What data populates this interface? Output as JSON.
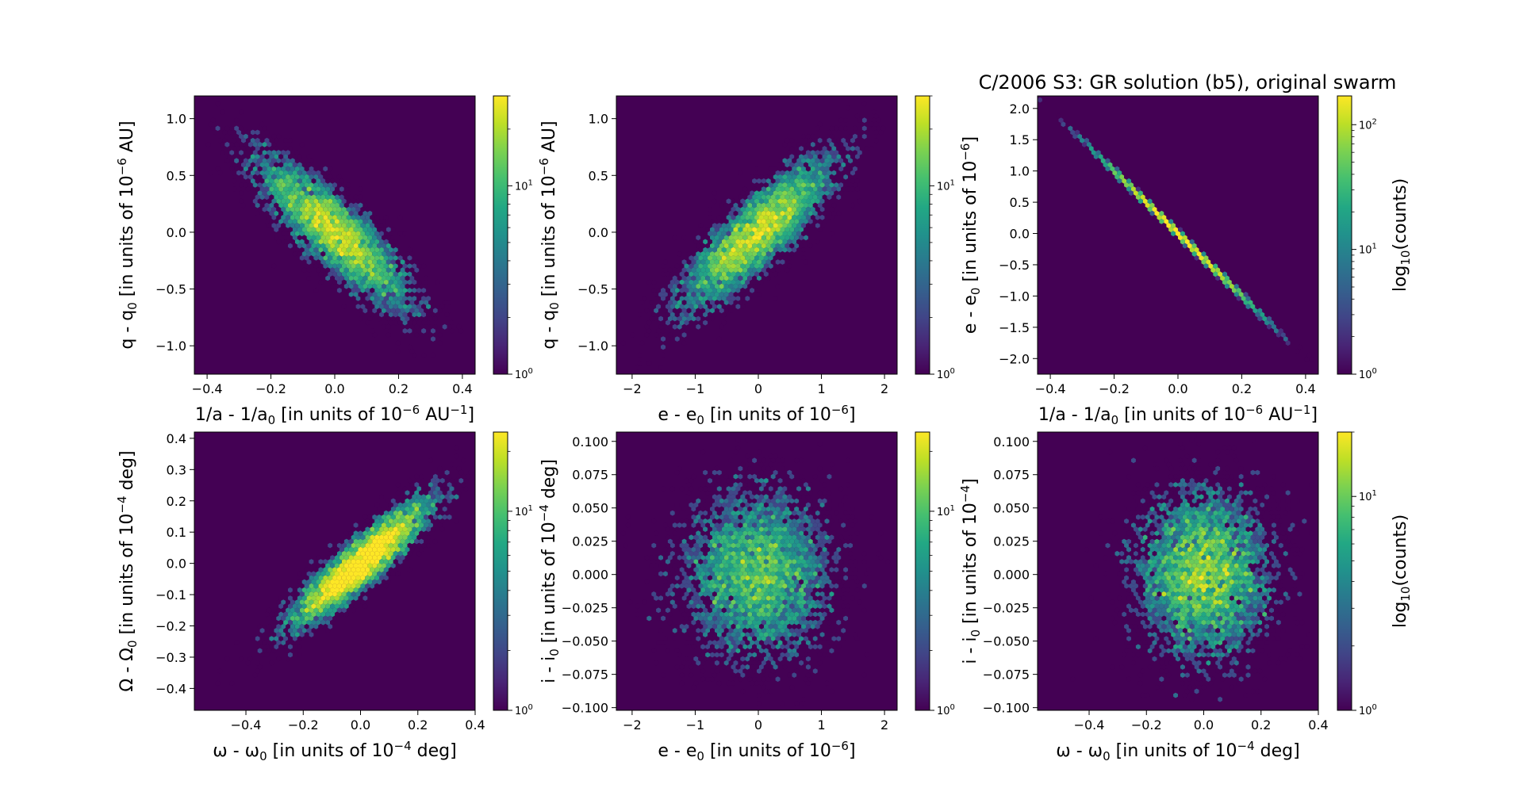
{
  "figure": {
    "title": "C/2006 S3: GR solution (b5), original swarm"
  },
  "colors": {
    "background": "#440154",
    "viridis": [
      "#440154",
      "#482475",
      "#414487",
      "#355f8d",
      "#2a788e",
      "#21918c",
      "#22a884",
      "#44bf70",
      "#7ad151",
      "#bddf26",
      "#fde725"
    ]
  },
  "chart_data": [
    {
      "type": "heatmap",
      "subtype": "hexbin-log",
      "xlabel": "1/a - 1/a0 [in units of 10^-6 AU^-1]",
      "ylabel": "q - q0 [in units of 10^-6 AU]",
      "xlim": [
        -0.44,
        0.44
      ],
      "ylim": [
        -1.25,
        1.2
      ],
      "xticks": [
        -0.4,
        -0.2,
        0.0,
        0.2,
        0.4
      ],
      "xtick_labels": [
        "−0.4",
        "−0.2",
        "0.0",
        "0.2",
        "0.4"
      ],
      "yticks": [
        -1.0,
        -0.5,
        0.0,
        0.5,
        1.0
      ],
      "ytick_labels": [
        "−1.0",
        "−0.5",
        "0.0",
        "0.5",
        "1.0"
      ],
      "distribution": {
        "sx": 0.12,
        "sy": 0.33,
        "rho": -0.85,
        "n": 6000
      },
      "colorbar": {
        "max": 30,
        "ticks": [
          1,
          10
        ],
        "label": ""
      }
    },
    {
      "type": "heatmap",
      "subtype": "hexbin-log",
      "xlabel": "e - e0 [in units of 10^-6]",
      "ylabel": "q - q0 [in units of 10^-6 AU]",
      "xlim": [
        -2.25,
        2.2
      ],
      "ylim": [
        -1.25,
        1.2
      ],
      "xticks": [
        -2,
        -1,
        0,
        1,
        2
      ],
      "xtick_labels": [
        "−2",
        "−1",
        "0",
        "1",
        "2"
      ],
      "yticks": [
        -1.0,
        -0.5,
        0.0,
        0.5,
        1.0
      ],
      "ytick_labels": [
        "−1.0",
        "−0.5",
        "0.0",
        "0.5",
        "1.0"
      ],
      "distribution": {
        "sx": 0.6,
        "sy": 0.33,
        "rho": 0.85,
        "n": 6000
      },
      "colorbar": {
        "max": 30,
        "ticks": [
          1,
          10
        ],
        "label": ""
      }
    },
    {
      "type": "heatmap",
      "subtype": "hexbin-log",
      "xlabel": "1/a - 1/a0 [in units of 10^-6 AU^-1]",
      "ylabel": "e - e0 [in units of 10^-6]",
      "xlim": [
        -0.44,
        0.44
      ],
      "ylim": [
        -2.25,
        2.2
      ],
      "xticks": [
        -0.4,
        -0.2,
        0.0,
        0.2,
        0.4
      ],
      "xtick_labels": [
        "−0.4",
        "−0.2",
        "0.0",
        "0.2",
        "0.4"
      ],
      "yticks": [
        -2.0,
        -1.5,
        -1.0,
        -0.5,
        0.0,
        0.5,
        1.0,
        1.5,
        2.0
      ],
      "ytick_labels": [
        "−2.0",
        "−1.5",
        "−1.0",
        "−0.5",
        "0.0",
        "0.5",
        "1.0",
        "1.5",
        "2.0"
      ],
      "distribution": {
        "sx": 0.12,
        "sy": 0.6,
        "rho": -0.9995,
        "n": 6000
      },
      "colorbar": {
        "max": 170,
        "ticks": [
          1,
          10,
          100
        ],
        "label": "log10(counts)"
      }
    },
    {
      "type": "heatmap",
      "subtype": "hexbin-log",
      "xlabel": "ω - ω0 [in units of 10^-4 deg]",
      "ylabel": "Ω - Ω0 [in units of 10^-4 deg]",
      "xlim": [
        -0.58,
        0.4
      ],
      "ylim": [
        -0.47,
        0.42
      ],
      "xticks": [
        -0.4,
        -0.2,
        0.0,
        0.2,
        0.4
      ],
      "xtick_labels": [
        "−0.4",
        "−0.2",
        "0.0",
        "0.2",
        "0.4"
      ],
      "yticks": [
        -0.4,
        -0.3,
        -0.2,
        -0.1,
        0.0,
        0.1,
        0.2,
        0.3,
        0.4
      ],
      "ytick_labels": [
        "−0.4",
        "−0.3",
        "−0.2",
        "−0.1",
        "0.0",
        "0.1",
        "0.2",
        "0.3",
        "0.4"
      ],
      "distribution": {
        "sx": 0.12,
        "sy": 0.1,
        "rho": 0.9,
        "n": 6000
      },
      "colorbar": {
        "max": 25,
        "ticks": [
          1,
          10
        ],
        "label": ""
      }
    },
    {
      "type": "heatmap",
      "subtype": "hexbin-log",
      "xlabel": "e - e0 [in units of 10^-6]",
      "ylabel": "i - i0 [in units of 10^-4 deg]",
      "xlim": [
        -2.25,
        2.2
      ],
      "ylim": [
        -0.102,
        0.107
      ],
      "xticks": [
        -2,
        -1,
        0,
        1,
        2
      ],
      "xtick_labels": [
        "−2",
        "−1",
        "0",
        "1",
        "2"
      ],
      "yticks": [
        -0.1,
        -0.075,
        -0.05,
        -0.025,
        0.0,
        0.025,
        0.05,
        0.075,
        0.1
      ],
      "ytick_labels": [
        "−0.100",
        "−0.075",
        "−0.050",
        "−0.025",
        "0.000",
        "0.025",
        "0.050",
        "0.075",
        "0.100"
      ],
      "distribution": {
        "sx": 0.6,
        "sy": 0.032,
        "rho": 0.0,
        "n": 6000
      },
      "colorbar": {
        "max": 25,
        "ticks": [
          1,
          10
        ],
        "label": ""
      }
    },
    {
      "type": "heatmap",
      "subtype": "hexbin-log",
      "xlabel": "ω - ω0 [in units of 10^-4 deg]",
      "ylabel": "i - i0 [in units of 10^-4]",
      "xlim": [
        -0.58,
        0.4
      ],
      "ylim": [
        -0.102,
        0.107
      ],
      "xticks": [
        -0.4,
        -0.2,
        0.0,
        0.2,
        0.4
      ],
      "xtick_labels": [
        "−0.4",
        "−0.2",
        "0.0",
        "0.2",
        "0.4"
      ],
      "yticks": [
        -0.1,
        -0.075,
        -0.05,
        -0.025,
        0.0,
        0.025,
        0.05,
        0.075,
        0.1
      ],
      "ytick_labels": [
        "−0.100",
        "−0.075",
        "−0.050",
        "−0.025",
        "0.000",
        "0.025",
        "0.050",
        "0.075",
        "0.100"
      ],
      "distribution": {
        "sx": 0.12,
        "sy": 0.032,
        "rho": 0.0,
        "n": 6000
      },
      "colorbar": {
        "max": 20,
        "ticks": [
          1,
          10
        ],
        "label": "log10(counts)"
      }
    }
  ]
}
